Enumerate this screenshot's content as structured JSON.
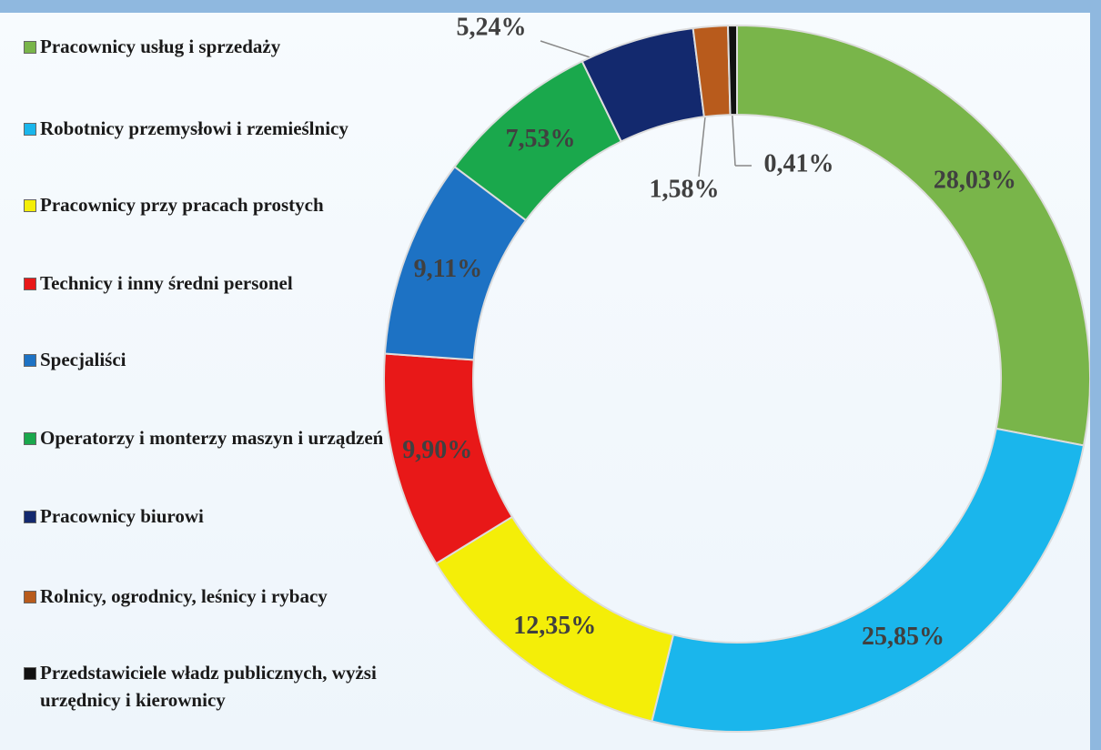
{
  "chart_data": {
    "type": "donut",
    "categories": [
      "Pracownicy usług i sprzedaży",
      "Robotnicy przemysłowi i rzemieślnicy",
      "Pracownicy przy pracach prostych",
      "Technicy i inny średni personel",
      "Specjaliści",
      "Operatorzy i monterzy maszyn i urządzeń",
      "Pracownicy biurowi",
      "Rolnicy, ogrodnicy, leśnicy i rybacy",
      "Przedstawiciele władz publicznych, wyżsi urzędnicy i kierownicy"
    ],
    "values": [
      28.03,
      25.85,
      12.35,
      9.9,
      9.11,
      7.53,
      5.24,
      1.58,
      0.41
    ],
    "value_labels": [
      "28,03%",
      "25,85%",
      "12,35%",
      "9,90%",
      "9,11%",
      "7,53%",
      "5,24%",
      "1,58%",
      "0,41%"
    ],
    "colors": [
      "#79b54a",
      "#1ab6ec",
      "#f4ee08",
      "#e81818",
      "#1d72c4",
      "#1aa84c",
      "#13296e",
      "#b85b1c",
      "#111111"
    ],
    "legend": "left"
  }
}
